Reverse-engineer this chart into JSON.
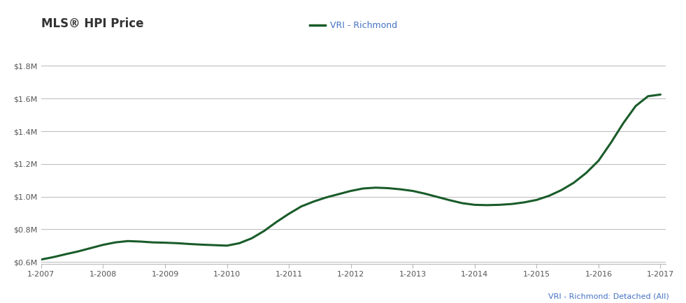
{
  "title": "MLS® HPI Price",
  "legend_label": "VRI - Richmond",
  "footer_label": "VRI - Richmond: Detached (All)",
  "line_color": "#1a5c2a",
  "line_width": 2.2,
  "background_color": "#ffffff",
  "grid_color": "#b8b8b8",
  "title_color": "#333333",
  "title_fontsize": 12,
  "legend_label_color": "#4472c4",
  "footer_color": "#4472c4",
  "tick_color": "#555555",
  "xlim": [
    2007.0,
    2017.08
  ],
  "ylim": [
    590000,
    1870000
  ],
  "yticks": [
    600000,
    800000,
    1000000,
    1200000,
    1400000,
    1600000,
    1800000
  ],
  "xtick_labels": [
    "1-2007",
    "1-2008",
    "1-2009",
    "1-2010",
    "1-2011",
    "1-2012",
    "1-2013",
    "1-2014",
    "1-2015",
    "1-2016",
    "1-2017"
  ],
  "xtick_positions": [
    2007,
    2008,
    2009,
    2010,
    2011,
    2012,
    2013,
    2014,
    2015,
    2016,
    2017
  ],
  "x": [
    2007.0,
    2007.2,
    2007.4,
    2007.6,
    2007.8,
    2008.0,
    2008.2,
    2008.4,
    2008.6,
    2008.8,
    2009.0,
    2009.2,
    2009.4,
    2009.6,
    2009.8,
    2010.0,
    2010.2,
    2010.4,
    2010.6,
    2010.8,
    2011.0,
    2011.2,
    2011.4,
    2011.6,
    2011.8,
    2012.0,
    2012.2,
    2012.4,
    2012.6,
    2012.8,
    2013.0,
    2013.2,
    2013.4,
    2013.6,
    2013.8,
    2014.0,
    2014.2,
    2014.4,
    2014.6,
    2014.8,
    2015.0,
    2015.2,
    2015.4,
    2015.6,
    2015.8,
    2016.0,
    2016.2,
    2016.4,
    2016.6,
    2016.8,
    2017.0
  ],
  "y": [
    615000,
    630000,
    648000,
    665000,
    685000,
    705000,
    720000,
    728000,
    725000,
    720000,
    718000,
    715000,
    710000,
    706000,
    703000,
    700000,
    715000,
    745000,
    790000,
    845000,
    895000,
    940000,
    970000,
    995000,
    1015000,
    1035000,
    1050000,
    1055000,
    1052000,
    1045000,
    1035000,
    1018000,
    998000,
    978000,
    960000,
    950000,
    948000,
    950000,
    955000,
    965000,
    980000,
    1005000,
    1040000,
    1085000,
    1145000,
    1220000,
    1330000,
    1450000,
    1555000,
    1615000,
    1625000
  ]
}
